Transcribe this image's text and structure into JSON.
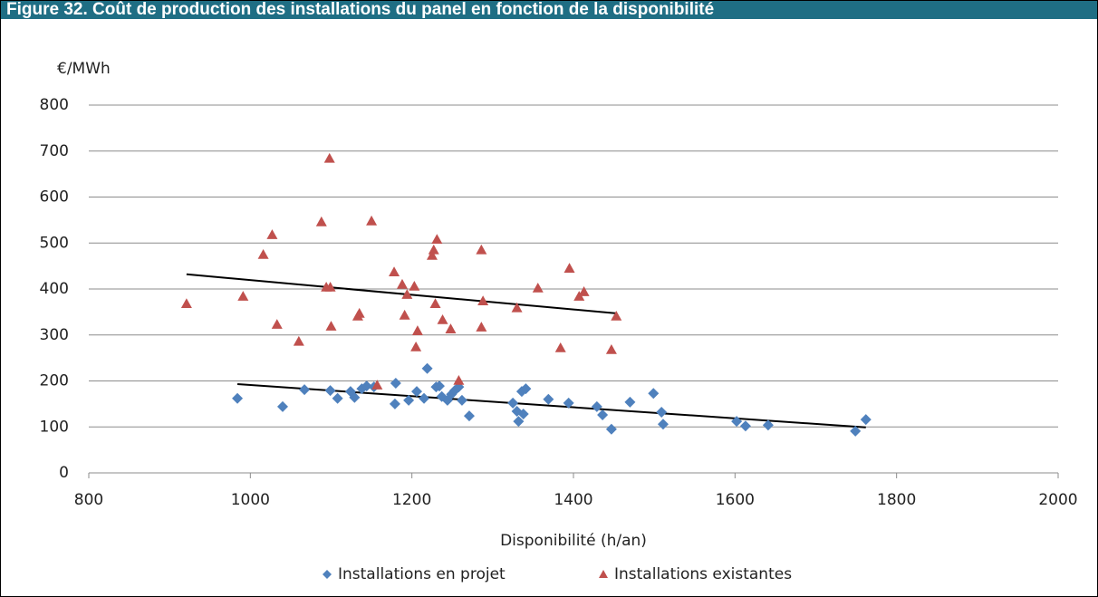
{
  "header": {
    "title": "Figure 32. Coût de production des installations du panel en fonction de la disponibilité"
  },
  "chart_data": {
    "type": "scatter",
    "y_label": "€/MWh",
    "x_label": "Disponibilité (h/an)",
    "xlim": [
      800,
      2000
    ],
    "xticks": [
      800,
      1000,
      1200,
      1400,
      1600,
      1800,
      2000
    ],
    "ylim": [
      0,
      800
    ],
    "yticks": [
      0,
      100,
      200,
      300,
      400,
      500,
      600,
      700,
      800
    ],
    "grid": true,
    "legend": "bottom",
    "series": [
      {
        "name": "Installations en projet",
        "color": "#4f81bd",
        "marker": "diamond",
        "x": [
          984,
          1040,
          1067,
          1099,
          1108,
          1124,
          1129,
          1138,
          1144,
          1153,
          1179,
          1180,
          1196,
          1206,
          1215,
          1219,
          1230,
          1234,
          1237,
          1244,
          1249,
          1253,
          1258,
          1262,
          1271,
          1325,
          1330,
          1332,
          1336,
          1338,
          1341,
          1369,
          1394,
          1429,
          1436,
          1447,
          1470,
          1499,
          1509,
          1511,
          1602,
          1613,
          1641,
          1749,
          1762
        ],
        "values": [
          162,
          144,
          181,
          179,
          162,
          177,
          164,
          183,
          189,
          187,
          150,
          195,
          158,
          177,
          162,
          227,
          187,
          189,
          166,
          158,
          171,
          179,
          187,
          158,
          124,
          152,
          134,
          112,
          177,
          128,
          183,
          160,
          152,
          144,
          126,
          95,
          154,
          173,
          132,
          106,
          112,
          102,
          104,
          91,
          116
        ],
        "trendline": {
          "x": [
            984,
            1762
          ],
          "values": [
            193,
            99
          ]
        }
      },
      {
        "name": "Installations existantes",
        "color": "#c0504d",
        "marker": "triangle",
        "x": [
          921,
          991,
          1027,
          1016,
          1033,
          1060,
          1088,
          1094,
          1098,
          1099,
          1100,
          1133,
          1135,
          1150,
          1157,
          1178,
          1188,
          1191,
          1194,
          1203,
          1205,
          1207,
          1225,
          1227,
          1229,
          1231,
          1238,
          1248,
          1258,
          1286,
          1286,
          1288,
          1330,
          1356,
          1384,
          1395,
          1407,
          1413,
          1447,
          1453
        ],
        "values": [
          368,
          384,
          518,
          475,
          323,
          286,
          546,
          404,
          684,
          404,
          319,
          341,
          347,
          548,
          191,
          437,
          410,
          343,
          388,
          406,
          274,
          309,
          473,
          485,
          368,
          508,
          333,
          313,
          201,
          317,
          485,
          374,
          359,
          402,
          272,
          445,
          384,
          394,
          268,
          341
        ],
        "trendline": {
          "x": [
            921,
            1453
          ],
          "values": [
            432,
            347
          ]
        }
      }
    ]
  }
}
